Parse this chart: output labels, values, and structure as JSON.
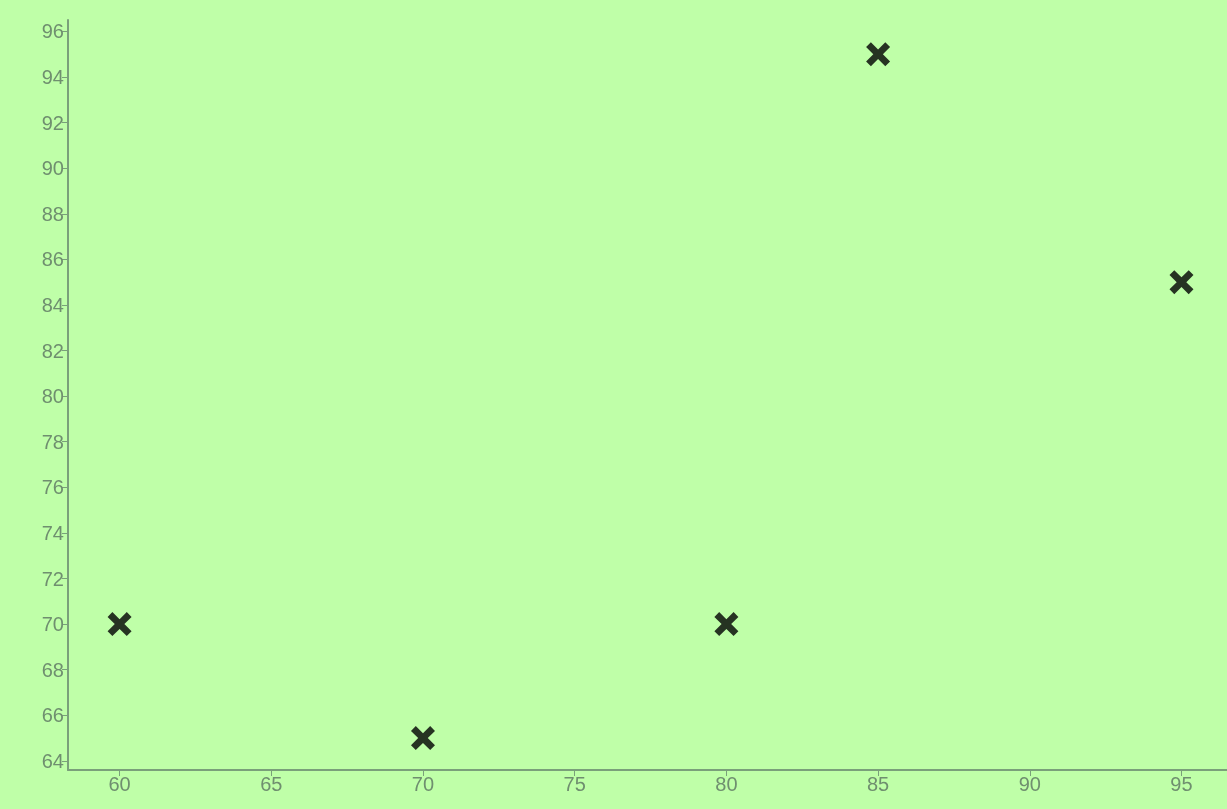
{
  "chart_data": {
    "type": "scatter",
    "x": [
      60,
      70,
      80,
      85,
      95
    ],
    "values": [
      70,
      65,
      70,
      95,
      85
    ],
    "color": "#000000",
    "marker": "cross",
    "xlim": [
      58.3,
      96.5
    ],
    "xticks": [
      60,
      65,
      70,
      75,
      80,
      85,
      90,
      95
    ],
    "ylim": [
      63.6,
      96.5
    ],
    "yticks": [
      64,
      66,
      68,
      70,
      72,
      74,
      76,
      78,
      80,
      82,
      84,
      86,
      88,
      90,
      92,
      94,
      96
    ],
    "grid": false
  }
}
